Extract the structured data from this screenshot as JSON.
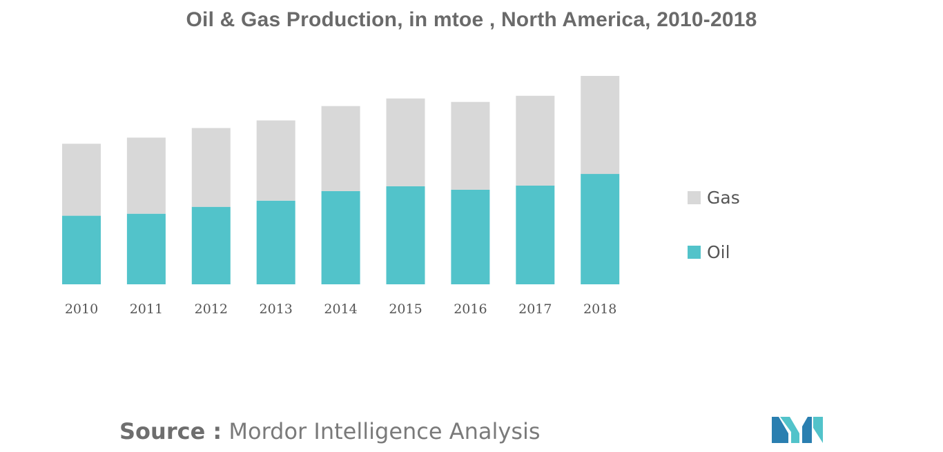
{
  "chart_data": {
    "type": "bar",
    "stacked": true,
    "title": "Oil & Gas Production, in mtoe , North America, 2010-2018",
    "categories": [
      "2010",
      "2011",
      "2012",
      "2013",
      "2014",
      "2015",
      "2016",
      "2017",
      "2018"
    ],
    "series": [
      {
        "name": "Oil",
        "values": [
          100,
          103,
          113,
          122,
          136,
          143,
          138,
          144,
          161
        ]
      },
      {
        "name": "Gas",
        "values": [
          105,
          111,
          115,
          117,
          124,
          128,
          128,
          131,
          143
        ]
      }
    ],
    "ylim": [
      0,
      310
    ],
    "yaxis_visible": false,
    "grid": false,
    "legend": "right",
    "colors": {
      "Oil": "#52c3ca",
      "Gas": "#d8d8d8"
    }
  },
  "source": {
    "label": "Source :",
    "text": "Mordor Intelligence Analysis"
  },
  "logo": {
    "icon": "mordor-intelligence-logo",
    "colors": [
      "#2a7fb0",
      "#52c3ca"
    ]
  }
}
